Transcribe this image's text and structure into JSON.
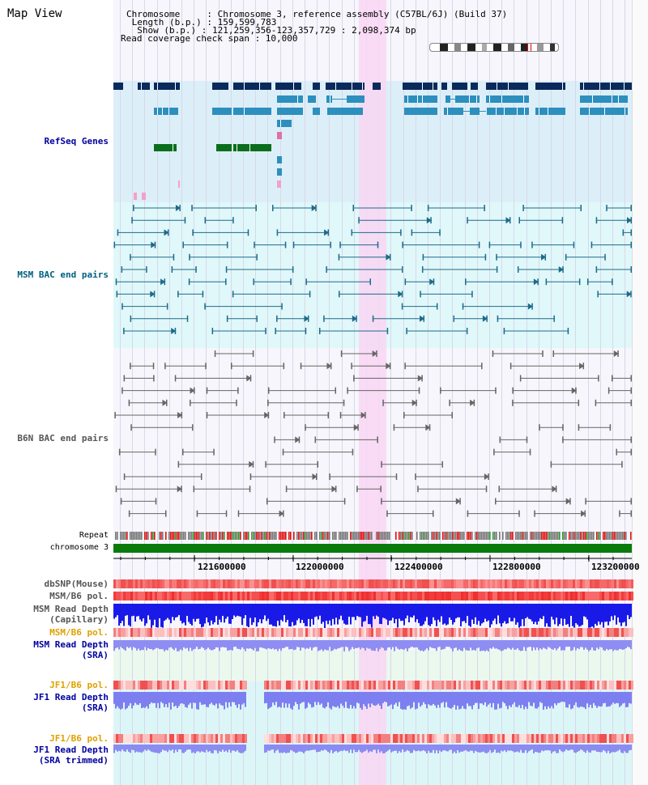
{
  "header": {
    "map_view": "Map View",
    "chromosome_line": "Chromosome     : Chromosome 3, reference assembly (C57BL/6J) (Build 37)",
    "length_line": " Length (b.p.) : 159,599,783",
    "show_line": "  Show (b.p.) : 121,259,356-123,357,729 : 2,098,374 bp",
    "coverage_line": "Read coverage check span : 10,000"
  },
  "tracks": {
    "refseq": "RefSeq Genes",
    "msm_bac": "MSM BAC end pairs",
    "b6n_bac": "B6N BAC end pairs",
    "repeat": "Repeat",
    "chromosome": "chromosome 3",
    "dbsnp": "dbSNP(Mouse)",
    "msm_b6_pol_1": "MSM/B6 pol.",
    "msm_read_depth_cap_1": "MSM Read Depth",
    "msm_read_depth_cap_2": "(Capillary)",
    "msm_b6_pol_2": "MSM/B6 pol.",
    "msm_read_depth_sra_1": "MSM Read Depth",
    "msm_read_depth_sra_2": "(SRA)",
    "jf1_b6_pol_1": "JF1/B6 pol.",
    "jf1_read_depth_sra_1": "JF1 Read Depth",
    "jf1_read_depth_sra_2": "(SRA)",
    "jf1_b6_pol_2": "JF1/B6 pol.",
    "jf1_read_depth_trim_1": "JF1 Read Depth",
    "jf1_read_depth_trim_2": "(SRA trimmed)"
  },
  "axis": {
    "ticks": [
      "121600000",
      "122000000",
      "122400000",
      "122800000",
      "123200000"
    ]
  },
  "colors": {
    "refseq_bg": "#dceff8",
    "msm_bg": "#e0f8fa",
    "highlight": "#f9d6f3",
    "navy": "#0a2a5c",
    "teal": "#2d8fbd",
    "green": "#0b6e1c",
    "chromosome_bar": "#0a7a0a"
  }
}
